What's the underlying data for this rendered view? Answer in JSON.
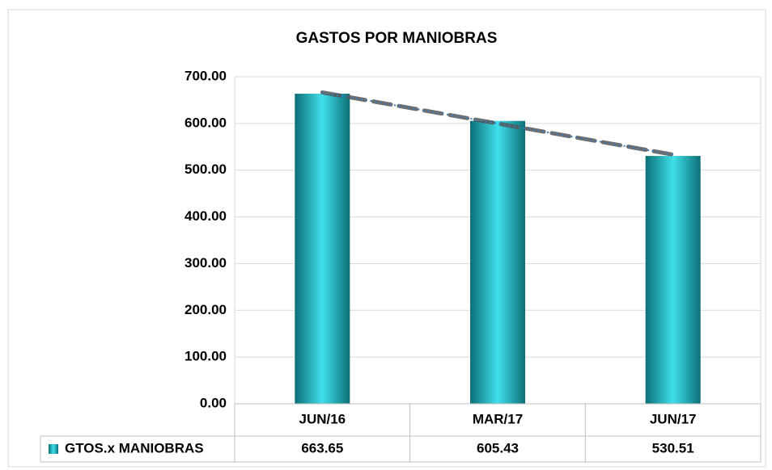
{
  "chart_data": {
    "type": "bar",
    "title": "GASTOS POR MANIOBRAS",
    "categories": [
      "JUN/16",
      "MAR/17",
      "JUN/17"
    ],
    "series": [
      {
        "name": "GTOS.x MANIOBRAS",
        "color": "#14a7b2",
        "values": [
          663.65,
          605.43,
          530.51
        ],
        "value_labels": [
          "663.65",
          "605.43",
          "530.51"
        ]
      }
    ],
    "trendline": "linear",
    "ylim": [
      0,
      700
    ],
    "yticks": [
      {
        "value": 0,
        "label": "0.00"
      },
      {
        "value": 100,
        "label": "100.00"
      },
      {
        "value": 200,
        "label": "200.00"
      },
      {
        "value": 300,
        "label": "300.00"
      },
      {
        "value": 400,
        "label": "400.00"
      },
      {
        "value": 500,
        "label": "500.00"
      },
      {
        "value": 600,
        "label": "600.00"
      },
      {
        "value": 700,
        "label": "700.00"
      }
    ],
    "grid": true,
    "data_table": true
  }
}
